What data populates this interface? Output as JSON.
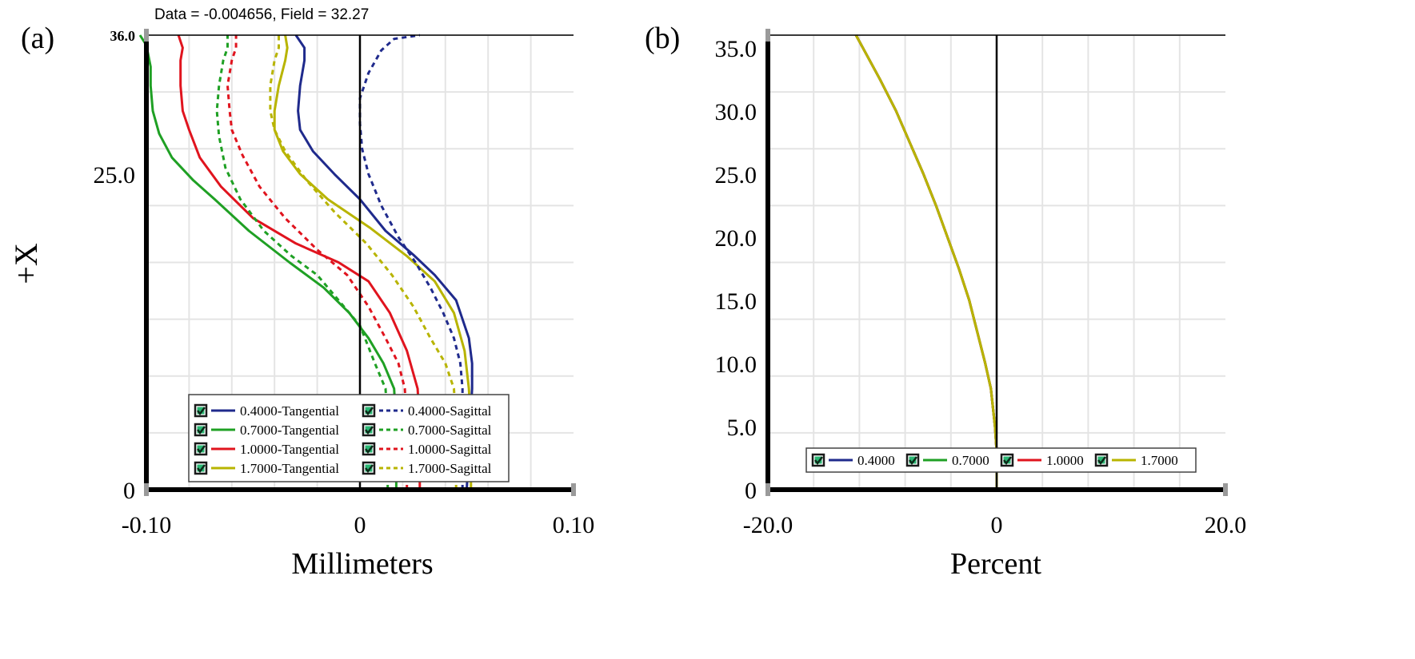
{
  "chart_data": [
    {
      "type": "line",
      "panel_label": "(a)",
      "readout": "Data = -0.004656, Field = 32.27",
      "xlabel": "Millimeters",
      "ylabel": "+X",
      "xlim": [
        -0.1,
        0.1
      ],
      "ylim": [
        0,
        36
      ],
      "x_ticks": [
        -0.1,
        0,
        0.1
      ],
      "x_tick_labels": [
        "-0.10",
        "0",
        "0.10"
      ],
      "y_ticks": [
        0,
        25,
        36
      ],
      "y_tick_labels": [
        "0",
        "25.0",
        "36.0"
      ],
      "grid": true,
      "legend_position": "bottom-right",
      "series": [
        {
          "name": "0.4000-Tangential",
          "color": "#1f2a8c",
          "dash": "solid",
          "points": [
            [
              0.05,
              0
            ],
            [
              0.0515,
              5
            ],
            [
              0.0525,
              8
            ],
            [
              0.0525,
              10
            ],
            [
              0.051,
              12
            ],
            [
              0.045,
              15
            ],
            [
              0.035,
              17
            ],
            [
              0.025,
              18.6
            ],
            [
              0.012,
              20.5
            ],
            [
              0.0,
              23
            ],
            [
              -0.012,
              25
            ],
            [
              -0.022,
              26.8
            ],
            [
              -0.028,
              28.5
            ],
            [
              -0.029,
              30
            ],
            [
              -0.028,
              32
            ],
            [
              -0.026,
              34
            ],
            [
              -0.026,
              35
            ],
            [
              -0.03,
              36
            ]
          ]
        },
        {
          "name": "0.7000-Tangential",
          "color": "#1fa024",
          "dash": "solid",
          "points": [
            [
              0.017,
              0
            ],
            [
              0.017,
              5
            ],
            [
              0.016,
              8
            ],
            [
              0.011,
              10
            ],
            [
              0.004,
              12
            ],
            [
              -0.005,
              14
            ],
            [
              -0.017,
              16
            ],
            [
              -0.033,
              18
            ],
            [
              -0.052,
              20.5
            ],
            [
              -0.068,
              23
            ],
            [
              -0.078,
              24.5
            ],
            [
              -0.088,
              26.3
            ],
            [
              -0.094,
              28.2
            ],
            [
              -0.097,
              30
            ],
            [
              -0.098,
              32
            ],
            [
              -0.098,
              33.5
            ],
            [
              -0.1,
              35.2
            ],
            [
              -0.103,
              36
            ]
          ]
        },
        {
          "name": "1.0000-Tangential",
          "color": "#e0141e",
          "dash": "solid",
          "points": [
            [
              0.028,
              0
            ],
            [
              0.028,
              5
            ],
            [
              0.027,
              8
            ],
            [
              0.022,
              11
            ],
            [
              0.014,
              14
            ],
            [
              0.004,
              16.5
            ],
            [
              -0.01,
              18
            ],
            [
              -0.03,
              19.5
            ],
            [
              -0.05,
              21.5
            ],
            [
              -0.065,
              24
            ],
            [
              -0.075,
              26.3
            ],
            [
              -0.08,
              28.5
            ],
            [
              -0.083,
              30
            ],
            [
              -0.084,
              32
            ],
            [
              -0.084,
              34
            ],
            [
              -0.083,
              35
            ],
            [
              -0.085,
              36
            ]
          ]
        },
        {
          "name": "1.7000-Tangential",
          "color": "#b8b400",
          "dash": "solid",
          "points": [
            [
              0.052,
              0
            ],
            [
              0.052,
              5
            ],
            [
              0.051,
              8
            ],
            [
              0.049,
              11
            ],
            [
              0.044,
              14
            ],
            [
              0.035,
              16.5
            ],
            [
              0.022,
              18.5
            ],
            [
              0.005,
              20.7
            ],
            [
              -0.015,
              23
            ],
            [
              -0.028,
              25
            ],
            [
              -0.036,
              26.8
            ],
            [
              -0.04,
              28.5
            ],
            [
              -0.04,
              30
            ],
            [
              -0.038,
              32
            ],
            [
              -0.035,
              34
            ],
            [
              -0.034,
              35
            ],
            [
              -0.035,
              36
            ]
          ]
        },
        {
          "name": "0.4000-Sagittal",
          "color": "#1f2a8c",
          "dash": "dotted",
          "points": [
            [
              0.048,
              0
            ],
            [
              0.048,
              5
            ],
            [
              0.048,
              8
            ],
            [
              0.047,
              10
            ],
            [
              0.044,
              12
            ],
            [
              0.039,
              14
            ],
            [
              0.033,
              16
            ],
            [
              0.026,
              18
            ],
            [
              0.018,
              20
            ],
            [
              0.01,
              22.5
            ],
            [
              0.004,
              25
            ],
            [
              0.001,
              27
            ],
            [
              0.0,
              29
            ],
            [
              0.0,
              31
            ],
            [
              0.004,
              33
            ],
            [
              0.01,
              34.8
            ],
            [
              0.016,
              35.7
            ],
            [
              0.028,
              36
            ]
          ]
        },
        {
          "name": "0.7000-Sagittal",
          "color": "#1fa024",
          "dash": "dotted",
          "points": [
            [
              0.013,
              0
            ],
            [
              0.013,
              5
            ],
            [
              0.012,
              8
            ],
            [
              0.007,
              10
            ],
            [
              0.0,
              13
            ],
            [
              -0.01,
              15
            ],
            [
              -0.02,
              17
            ],
            [
              -0.032,
              18.5
            ],
            [
              -0.045,
              20.5
            ],
            [
              -0.056,
              23
            ],
            [
              -0.063,
              25.5
            ],
            [
              -0.066,
              28
            ],
            [
              -0.067,
              30
            ],
            [
              -0.066,
              32
            ],
            [
              -0.064,
              34
            ],
            [
              -0.062,
              35
            ],
            [
              -0.062,
              36
            ]
          ]
        },
        {
          "name": "1.0000-Sagittal",
          "color": "#e0141e",
          "dash": "dotted",
          "points": [
            [
              0.022,
              0
            ],
            [
              0.022,
              5
            ],
            [
              0.021,
              8
            ],
            [
              0.018,
              10
            ],
            [
              0.012,
              12
            ],
            [
              0.004,
              14.5
            ],
            [
              -0.006,
              17
            ],
            [
              -0.02,
              19
            ],
            [
              -0.035,
              21.5
            ],
            [
              -0.047,
              24
            ],
            [
              -0.055,
              26.5
            ],
            [
              -0.06,
              28.5
            ],
            [
              -0.061,
              30
            ],
            [
              -0.062,
              32
            ],
            [
              -0.06,
              34
            ],
            [
              -0.058,
              35
            ],
            [
              -0.058,
              36
            ]
          ]
        },
        {
          "name": "1.7000-Sagittal",
          "color": "#b8b400",
          "dash": "dotted",
          "points": [
            [
              0.045,
              0
            ],
            [
              0.045,
              5
            ],
            [
              0.044,
              8
            ],
            [
              0.04,
              10
            ],
            [
              0.033,
              12
            ],
            [
              0.025,
              14.5
            ],
            [
              0.015,
              17
            ],
            [
              0.003,
              19.5
            ],
            [
              -0.012,
              22
            ],
            [
              -0.025,
              24.5
            ],
            [
              -0.035,
              26.8
            ],
            [
              -0.04,
              28.5
            ],
            [
              -0.042,
              30
            ],
            [
              -0.042,
              32
            ],
            [
              -0.04,
              34
            ],
            [
              -0.038,
              35
            ],
            [
              -0.038,
              36
            ]
          ]
        }
      ]
    },
    {
      "type": "line",
      "panel_label": "(b)",
      "xlabel": "Percent",
      "ylabel": "",
      "xlim": [
        -20,
        20
      ],
      "ylim": [
        0,
        36
      ],
      "x_ticks": [
        -20,
        0,
        20
      ],
      "x_tick_labels": [
        "-20.0",
        "0",
        "20.0"
      ],
      "y_ticks": [
        0,
        5,
        10,
        15,
        20,
        25,
        30,
        35
      ],
      "y_tick_labels": [
        "0",
        "5.0",
        "10.0",
        "15.0",
        "20.0",
        "25.0",
        "30.0",
        "35.0"
      ],
      "grid": true,
      "legend_position": "bottom-center",
      "series": [
        {
          "name": "0.4000",
          "color": "#1f2a8c",
          "dash": "solid",
          "points": [
            [
              0,
              0
            ],
            [
              0,
              3
            ],
            [
              -0.15,
              5
            ],
            [
              -0.5,
              8
            ],
            [
              -1.0,
              10
            ],
            [
              -1.7,
              12.5
            ],
            [
              -2.4,
              15
            ],
            [
              -3.3,
              17.5
            ],
            [
              -4.3,
              20
            ],
            [
              -5.3,
              22.5
            ],
            [
              -6.4,
              25
            ],
            [
              -7.6,
              27.5
            ],
            [
              -8.8,
              30
            ],
            [
              -10.2,
              32.5
            ],
            [
              -11.7,
              35
            ],
            [
              -12.3,
              36
            ]
          ]
        },
        {
          "name": "0.7000",
          "color": "#1fa024",
          "dash": "solid",
          "points": [
            [
              0,
              0
            ],
            [
              0,
              3
            ],
            [
              -0.15,
              5
            ],
            [
              -0.5,
              8
            ],
            [
              -1.0,
              10
            ],
            [
              -1.7,
              12.5
            ],
            [
              -2.4,
              15
            ],
            [
              -3.3,
              17.5
            ],
            [
              -4.3,
              20
            ],
            [
              -5.3,
              22.5
            ],
            [
              -6.4,
              25
            ],
            [
              -7.6,
              27.5
            ],
            [
              -8.8,
              30
            ],
            [
              -10.2,
              32.5
            ],
            [
              -11.7,
              35
            ],
            [
              -12.3,
              36
            ]
          ]
        },
        {
          "name": "1.0000",
          "color": "#e0141e",
          "dash": "solid",
          "points": [
            [
              0,
              0
            ],
            [
              0,
              3
            ],
            [
              -0.15,
              5
            ],
            [
              -0.5,
              8
            ],
            [
              -1.0,
              10
            ],
            [
              -1.7,
              12.5
            ],
            [
              -2.4,
              15
            ],
            [
              -3.3,
              17.5
            ],
            [
              -4.3,
              20
            ],
            [
              -5.3,
              22.5
            ],
            [
              -6.4,
              25
            ],
            [
              -7.6,
              27.5
            ],
            [
              -8.8,
              30
            ],
            [
              -10.2,
              32.5
            ],
            [
              -11.7,
              35
            ],
            [
              -12.3,
              36
            ]
          ]
        },
        {
          "name": "1.7000",
          "color": "#b8b400",
          "dash": "solid",
          "points": [
            [
              0,
              0
            ],
            [
              0,
              3
            ],
            [
              -0.15,
              5
            ],
            [
              -0.5,
              8
            ],
            [
              -1.0,
              10
            ],
            [
              -1.7,
              12.5
            ],
            [
              -2.4,
              15
            ],
            [
              -3.3,
              17.5
            ],
            [
              -4.3,
              20
            ],
            [
              -5.3,
              22.5
            ],
            [
              -6.4,
              25
            ],
            [
              -7.6,
              27.5
            ],
            [
              -8.8,
              30
            ],
            [
              -10.2,
              32.5
            ],
            [
              -11.7,
              35
            ],
            [
              -12.3,
              36
            ]
          ]
        }
      ]
    }
  ]
}
